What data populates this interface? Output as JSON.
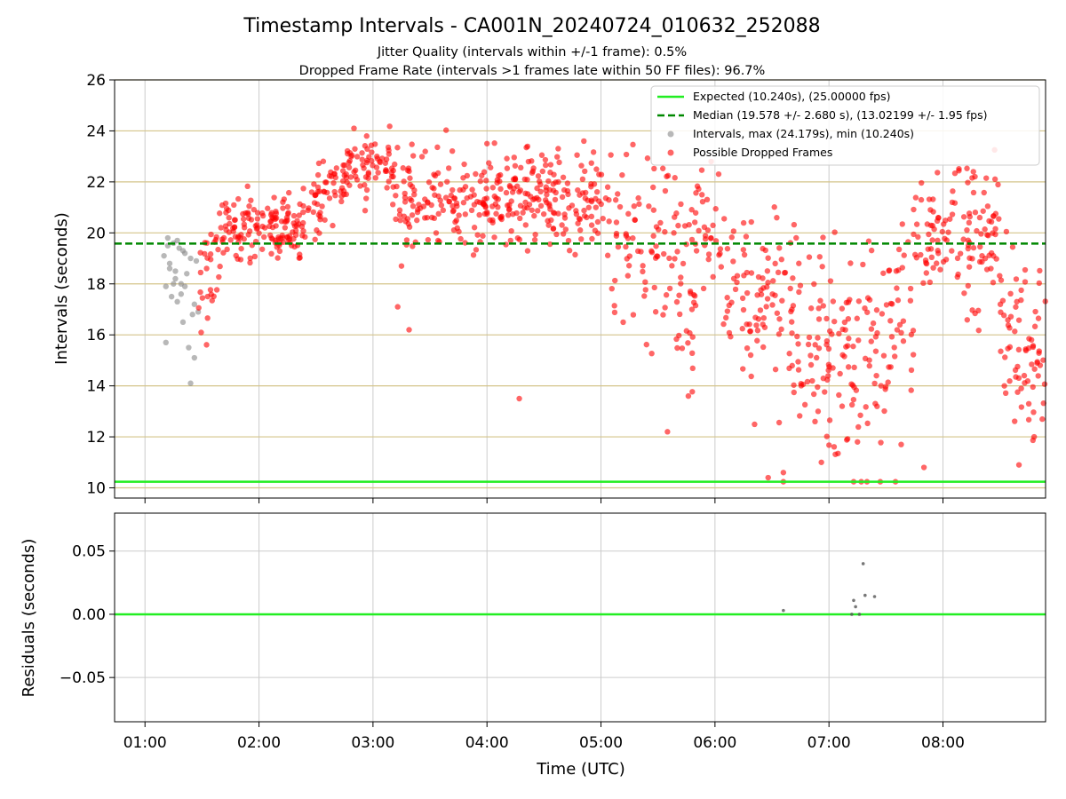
{
  "title": "Timestamp Intervals - CA001N_20240724_010632_252088",
  "subtitle_1": "Jitter Quality (intervals within +/-1 frame): 0.5%",
  "subtitle_2": "Dropped Frame Rate (intervals >1 frames late within 50 FF files): 96.7%",
  "colors": {
    "expected": "#22ee22",
    "median": "#008800",
    "intervals": "#888888",
    "dropped": "#ff0000",
    "hgrid_top": "#d4c48a",
    "grid": "#cccccc"
  },
  "chart_data": [
    {
      "type": "scatter",
      "xlabel": "",
      "ylabel": "Intervals (seconds)",
      "xlim": [
        "00:44",
        "08:54"
      ],
      "ylim": [
        9.6,
        26
      ],
      "yticks": [
        10,
        12,
        14,
        16,
        18,
        20,
        22,
        24,
        26
      ],
      "grid": true,
      "legend_position": "top-right",
      "legend": [
        "Expected (10.240s), (25.00000 fps)",
        "Median (19.578 +/- 2.680 s), (13.02199 +/- 1.95 fps)",
        "Intervals, max (24.179s), min (10.240s)",
        "Possible Dropped Frames"
      ],
      "expected_interval": 10.24,
      "median_interval": 19.578,
      "series": [
        {
          "name": "Intervals, max (24.179s), min (10.240s)",
          "points": [
            [
              "01:10",
              19.1
            ],
            [
              "01:11",
              17.9
            ],
            [
              "01:12",
              19.8
            ],
            [
              "01:13",
              18.6
            ],
            [
              "01:14",
              17.5
            ],
            [
              "01:15",
              19.6
            ],
            [
              "01:16",
              18.2
            ],
            [
              "01:17",
              17.3
            ],
            [
              "01:18",
              19.4
            ],
            [
              "01:19",
              18.0
            ],
            [
              "01:20",
              16.5
            ],
            [
              "01:21",
              19.2
            ],
            [
              "01:22",
              18.4
            ],
            [
              "01:23",
              15.5
            ],
            [
              "01:24",
              14.1
            ],
            [
              "01:25",
              16.8
            ],
            [
              "01:26",
              15.1
            ],
            [
              "01:27",
              18.9
            ],
            [
              "01:11",
              15.7
            ],
            [
              "01:13",
              18.8
            ],
            [
              "01:15",
              18.0
            ],
            [
              "01:17",
              19.7
            ],
            [
              "01:19",
              17.6
            ],
            [
              "01:21",
              17.9
            ],
            [
              "01:24",
              19.0
            ],
            [
              "01:26",
              17.2
            ],
            [
              "01:28",
              16.9
            ],
            [
              "01:12",
              19.5
            ],
            [
              "01:16",
              18.5
            ],
            [
              "01:20",
              19.3
            ]
          ]
        },
        {
          "name": "Possible Dropped Frames",
          "segments": [
            {
              "t0": "01:28",
              "t1": "01:40",
              "y0": 17.6,
              "y1": 19.6,
              "sd": 1.1,
              "n": 30
            },
            {
              "t0": "01:40",
              "t1": "02:20",
              "y0": 20.3,
              "y1": 20.0,
              "sd": 0.65,
              "n": 130
            },
            {
              "t0": "02:20",
              "t1": "02:40",
              "y0": 20.2,
              "y1": 21.8,
              "sd": 0.7,
              "n": 55
            },
            {
              "t0": "02:40",
              "t1": "03:10",
              "y0": 22.2,
              "y1": 22.6,
              "sd": 0.6,
              "n": 80
            },
            {
              "t0": "03:10",
              "t1": "05:05",
              "y0": 21.4,
              "y1": 21.3,
              "sd": 0.9,
              "n": 330
            },
            {
              "t0": "05:05",
              "t1": "05:50",
              "y0": 19.5,
              "y1": 18.0,
              "sd": 2.0,
              "n": 110
            },
            {
              "t0": "05:50",
              "t1": "06:05",
              "y0": 20.8,
              "y1": 19.0,
              "sd": 1.3,
              "n": 30
            },
            {
              "t0": "06:05",
              "t1": "06:50",
              "y0": 17.5,
              "y1": 16.2,
              "sd": 1.8,
              "n": 110
            },
            {
              "t0": "06:50",
              "t1": "07:30",
              "y0": 15.6,
              "y1": 15.2,
              "sd": 2.1,
              "n": 110
            },
            {
              "t0": "07:30",
              "t1": "07:45",
              "y0": 16.2,
              "y1": 18.0,
              "sd": 1.8,
              "n": 35
            },
            {
              "t0": "07:45",
              "t1": "08:30",
              "y0": 19.5,
              "y1": 20.0,
              "sd": 1.3,
              "n": 120
            },
            {
              "t0": "08:30",
              "t1": "08:54",
              "y0": 16.5,
              "y1": 15.2,
              "sd": 1.6,
              "n": 70
            }
          ],
          "outliers": [
            [
              "03:13",
              17.1
            ],
            [
              "03:15",
              18.7
            ],
            [
              "03:19",
              16.2
            ],
            [
              "04:17",
              13.5
            ],
            [
              "05:35",
              12.2
            ],
            [
              "05:46",
              13.6
            ],
            [
              "06:28",
              10.4
            ],
            [
              "06:36",
              10.6
            ],
            [
              "06:56",
              11.0
            ],
            [
              "07:13",
              10.24
            ],
            [
              "07:17",
              10.24
            ],
            [
              "07:20",
              10.24
            ],
            [
              "07:27",
              10.24
            ],
            [
              "07:35",
              10.24
            ],
            [
              "06:36",
              10.24
            ],
            [
              "07:38",
              11.7
            ],
            [
              "07:50",
              10.8
            ],
            [
              "08:40",
              10.9
            ],
            [
              "08:48",
              12.0
            ],
            [
              "02:50",
              24.1
            ],
            [
              "04:51",
              23.6
            ],
            [
              "05:58",
              22.8
            ],
            [
              "04:00",
              23.5
            ],
            [
              "08:16",
              22.4
            ]
          ]
        }
      ]
    },
    {
      "type": "scatter",
      "xlabel": "Time (UTC)",
      "ylabel": "Residuals (seconds)",
      "xlim": [
        "00:44",
        "08:54"
      ],
      "ylim": [
        -0.085,
        0.08
      ],
      "yticks": [
        -0.05,
        0.0,
        0.05
      ],
      "ytick_labels": [
        "−0.05",
        "0.00",
        "0.05"
      ],
      "xticks": [
        "01:00",
        "02:00",
        "03:00",
        "04:00",
        "05:00",
        "06:00",
        "07:00",
        "08:00"
      ],
      "grid": true,
      "zero_line": 0.0,
      "points": [
        [
          "06:36",
          0.003
        ],
        [
          "07:13",
          0.011
        ],
        [
          "07:14",
          0.006
        ],
        [
          "07:18",
          0.04
        ],
        [
          "07:19",
          0.015
        ],
        [
          "07:24",
          0.014
        ],
        [
          "07:12",
          0.0
        ],
        [
          "07:16",
          0.0
        ]
      ]
    }
  ]
}
